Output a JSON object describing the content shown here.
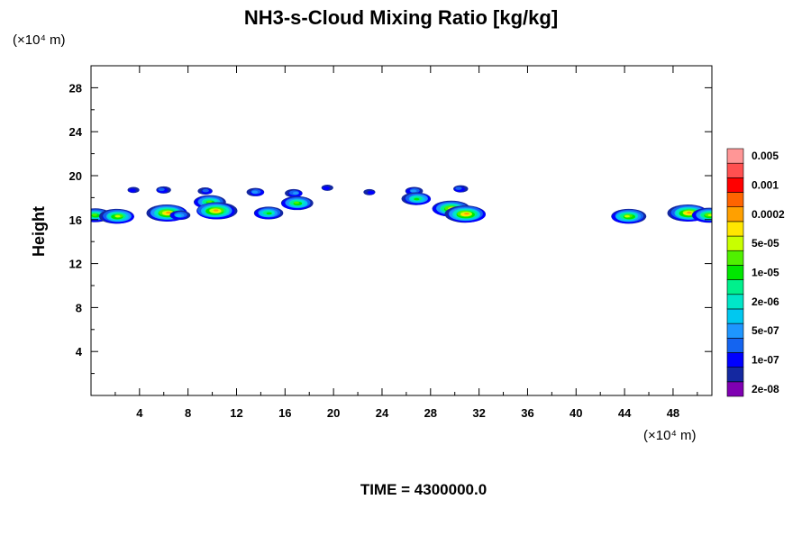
{
  "chart_data": {
    "type": "heatmap",
    "title": "NH3-s-Cloud Mixing Ratio [kg/kg]",
    "xlabel": "",
    "ylabel": "Height",
    "x_unit_label": "(×10⁴ m)",
    "y_unit_label": "(×10⁴ m)",
    "footer": "TIME = 4300000.0",
    "xlim": [
      0,
      51.2
    ],
    "ylim": [
      0,
      30
    ],
    "x_ticks": [
      4,
      8,
      12,
      16,
      20,
      24,
      28,
      32,
      36,
      40,
      44,
      48
    ],
    "x_tick_labels": [
      "4",
      "8",
      "12",
      "16",
      "20",
      "24",
      "28",
      "32",
      "36",
      "40",
      "44",
      "48"
    ],
    "y_ticks": [
      4,
      8,
      12,
      16,
      20,
      24,
      28
    ],
    "y_tick_labels": [
      "4",
      "8",
      "12",
      "16",
      "20",
      "24",
      "28"
    ],
    "colorbar": {
      "colors": [
        "#7f00b2",
        "#1428a0",
        "#0000ff",
        "#1464f0",
        "#1e96ff",
        "#00c8f0",
        "#00e6c8",
        "#00f08c",
        "#00e600",
        "#50f000",
        "#c8ff00",
        "#ffe600",
        "#ffa000",
        "#ff6400",
        "#ff0000",
        "#ff5050",
        "#ff9696"
      ],
      "labels": [
        "2e-08",
        "1e-07",
        "5e-07",
        "2e-06",
        "1e-05",
        "5e-05",
        "0.0002",
        "0.001",
        "0.005"
      ]
    },
    "cloud_regions": [
      {
        "x": 0.3,
        "y": 16.4,
        "level": 9
      },
      {
        "x": 2.2,
        "y": 16.3,
        "level": 10
      },
      {
        "x": 3.5,
        "y": 18.7,
        "level": 2
      },
      {
        "x": 5.9,
        "y": 18.7,
        "level": 3
      },
      {
        "x": 6.3,
        "y": 16.6,
        "level": 12
      },
      {
        "x": 7.3,
        "y": 16.4,
        "level": 5
      },
      {
        "x": 9.5,
        "y": 18.6,
        "level": 3
      },
      {
        "x": 9.8,
        "y": 17.6,
        "level": 9
      },
      {
        "x": 10.3,
        "y": 16.8,
        "level": 12
      },
      {
        "x": 13.6,
        "y": 18.5,
        "level": 4
      },
      {
        "x": 14.6,
        "y": 16.6,
        "level": 8
      },
      {
        "x": 16.8,
        "y": 18.4,
        "level": 4
      },
      {
        "x": 17.0,
        "y": 17.5,
        "level": 9
      },
      {
        "x": 19.4,
        "y": 18.9,
        "level": 2
      },
      {
        "x": 23.0,
        "y": 18.5,
        "level": 2
      },
      {
        "x": 26.6,
        "y": 18.6,
        "level": 4
      },
      {
        "x": 26.9,
        "y": 17.9,
        "level": 8
      },
      {
        "x": 29.7,
        "y": 17.0,
        "level": 11
      },
      {
        "x": 30.4,
        "y": 18.8,
        "level": 3
      },
      {
        "x": 30.9,
        "y": 16.5,
        "level": 12
      },
      {
        "x": 44.3,
        "y": 16.3,
        "level": 10
      },
      {
        "x": 49.3,
        "y": 16.6,
        "level": 12
      },
      {
        "x": 51.0,
        "y": 16.4,
        "level": 10
      }
    ]
  }
}
